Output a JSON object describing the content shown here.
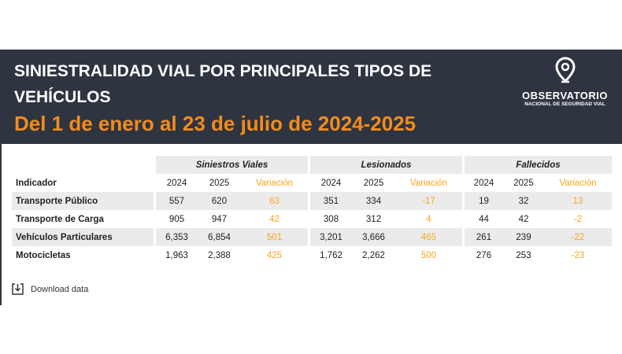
{
  "header": {
    "title": "SINIESTRALIDAD VIAL POR PRINCIPALES TIPOS DE VEHÍCULOS",
    "subtitle": "Del 1 de enero al 23 de julio de 2024-2025",
    "logo_name": "OBSERVATORIO",
    "logo_sub": "NACIONAL DE SEGURIDAD VIAL"
  },
  "table": {
    "groups": [
      "Siniestros Viales",
      "Lesionados",
      "Fallecidos"
    ],
    "columns": [
      "Indicador",
      "2024",
      "2025",
      "Variación",
      "2024",
      "2025",
      "Variación",
      "2024",
      "2025",
      "Variación"
    ],
    "rows": [
      [
        "Transporte Público",
        "557",
        "620",
        "63",
        "351",
        "334",
        "-17",
        "19",
        "32",
        "13"
      ],
      [
        "Transporte de Carga",
        "905",
        "947",
        "42",
        "308",
        "312",
        "4",
        "44",
        "42",
        "-2"
      ],
      [
        "Vehículos Particulares",
        "6,353",
        "6,854",
        "501",
        "3,201",
        "3,666",
        "465",
        "261",
        "239",
        "-22"
      ],
      [
        "Motocicletas",
        "1,963",
        "2,388",
        "425",
        "1,762",
        "2,262",
        "500",
        "276",
        "253",
        "-23"
      ]
    ]
  },
  "download": "Download data"
}
